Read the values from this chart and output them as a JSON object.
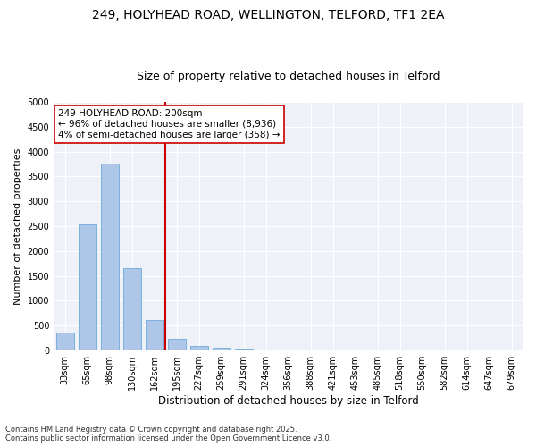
{
  "title_line1": "249, HOLYHEAD ROAD, WELLINGTON, TELFORD, TF1 2EA",
  "title_line2": "Size of property relative to detached houses in Telford",
  "xlabel": "Distribution of detached houses by size in Telford",
  "ylabel": "Number of detached properties",
  "categories": [
    "33sqm",
    "65sqm",
    "98sqm",
    "130sqm",
    "162sqm",
    "195sqm",
    "227sqm",
    "259sqm",
    "291sqm",
    "324sqm",
    "356sqm",
    "388sqm",
    "421sqm",
    "453sqm",
    "485sqm",
    "518sqm",
    "550sqm",
    "582sqm",
    "614sqm",
    "647sqm",
    "679sqm"
  ],
  "values": [
    370,
    2540,
    3760,
    1660,
    620,
    230,
    100,
    55,
    45,
    0,
    0,
    0,
    0,
    0,
    0,
    0,
    0,
    0,
    0,
    0,
    0
  ],
  "bar_color": "#aec6e8",
  "bar_edge_color": "#5a9fd4",
  "vline_x_index": 5,
  "vline_color": "#cc0000",
  "annotation_text": "249 HOLYHEAD ROAD: 200sqm\n← 96% of detached houses are smaller (8,936)\n4% of semi-detached houses are larger (358) →",
  "annotation_box_color": "#ffffff",
  "annotation_box_edge": "#cc0000",
  "ylim": [
    0,
    5000
  ],
  "yticks": [
    0,
    500,
    1000,
    1500,
    2000,
    2500,
    3000,
    3500,
    4000,
    4500,
    5000
  ],
  "background_color": "#eef2f8",
  "grid_color": "#ffffff",
  "footer_text": "Contains HM Land Registry data © Crown copyright and database right 2025.\nContains public sector information licensed under the Open Government Licence v3.0.",
  "title_fontsize": 10,
  "subtitle_fontsize": 9,
  "tick_fontsize": 7,
  "ylabel_fontsize": 8,
  "xlabel_fontsize": 8.5,
  "annotation_fontsize": 7.5,
  "footer_fontsize": 6
}
